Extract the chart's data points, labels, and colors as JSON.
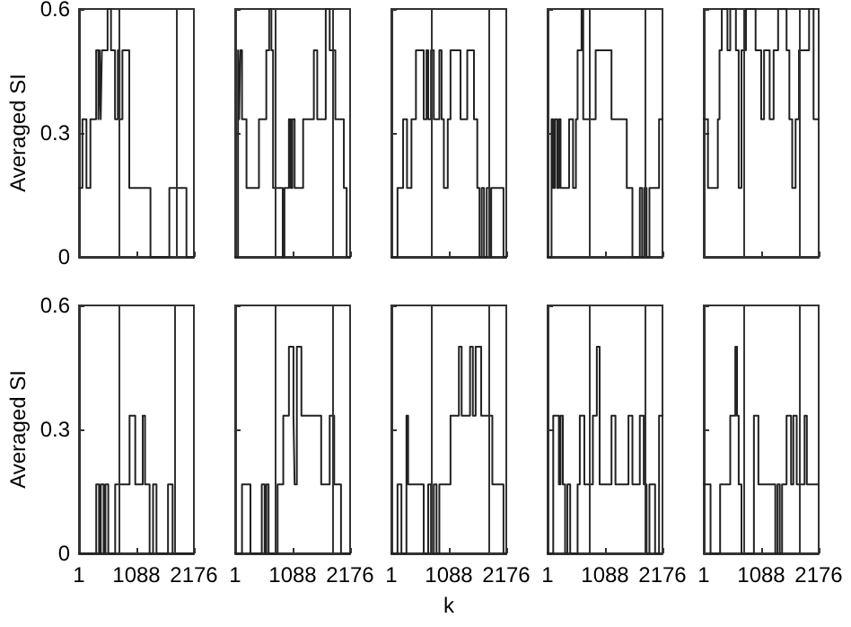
{
  "chart_data": [
    {
      "type": "step",
      "ylabel": "Averaged SI",
      "tick_labels": "y",
      "color": "#222222",
      "xlim": [
        1,
        2176
      ],
      "xticks": [
        1,
        1088,
        2176
      ],
      "ylim": [
        0,
        0.6
      ],
      "yticks": [
        0,
        0.3,
        0.6
      ],
      "ref_lines": [
        {
          "axis": "x",
          "value": 760
        },
        {
          "axis": "x",
          "value": 1830
        }
      ],
      "x": [
        1,
        66,
        142,
        217,
        326,
        369,
        391,
        412,
        434,
        542,
        607,
        683,
        737,
        769,
        823,
        953,
        1354,
        1711,
        2035,
        2176
      ],
      "values": [
        0.167,
        0.333,
        0.167,
        0.333,
        0.5,
        0.333,
        0.5,
        0.333,
        0.5,
        0.6,
        0.5,
        0.333,
        0.5,
        0.333,
        0.5,
        0.167,
        0,
        0.167,
        0,
        0
      ]
    },
    {
      "type": "step",
      "tick_labels": false,
      "color": "#222222",
      "xlim": [
        1,
        2176
      ],
      "xticks": [
        1,
        1088,
        2176
      ],
      "ylim": [
        0,
        0.6
      ],
      "yticks": [
        0,
        0.3,
        0.6
      ],
      "ref_lines": [
        {
          "axis": "x",
          "value": 770
        },
        {
          "axis": "x",
          "value": 1840
        }
      ],
      "x": [
        1,
        55,
        76,
        97,
        130,
        215,
        451,
        590,
        644,
        686,
        718,
        901,
        933,
        1018,
        1051,
        1083,
        1126,
        1287,
        1490,
        1554,
        1715,
        1790,
        1897,
        2058,
        2111,
        2176
      ],
      "values": [
        0,
        0.5,
        0.333,
        0.5,
        0.333,
        0.167,
        0.333,
        0.5,
        0.6,
        0.5,
        0.167,
        0,
        0.167,
        0.333,
        0.167,
        0.333,
        0.167,
        0.333,
        0.5,
        0.333,
        0.6,
        0.5,
        0.333,
        0.167,
        0,
        0
      ]
    },
    {
      "type": "step",
      "tick_labels": false,
      "color": "#222222",
      "xlim": [
        1,
        2176
      ],
      "xticks": [
        1,
        1088,
        2176
      ],
      "ylim": [
        0,
        0.6
      ],
      "yticks": [
        0,
        0.3,
        0.6
      ],
      "ref_lines": [
        {
          "axis": "x",
          "value": 760
        },
        {
          "axis": "x",
          "value": 1830
        }
      ],
      "x": [
        1,
        117,
        223,
        297,
        381,
        466,
        613,
        666,
        698,
        751,
        804,
        909,
        951,
        994,
        1068,
        1120,
        1310,
        1437,
        1564,
        1627,
        1669,
        1711,
        1754,
        1806,
        1859,
        1890,
        2123,
        2176
      ],
      "values": [
        0,
        0.167,
        0.333,
        0.167,
        0.333,
        0.5,
        0.333,
        0.5,
        0.333,
        0.5,
        0.333,
        0.5,
        0.333,
        0.167,
        0.333,
        0.5,
        0.333,
        0.5,
        0.333,
        0.167,
        0,
        0.167,
        0,
        0.167,
        0,
        0.167,
        0,
        0
      ]
    },
    {
      "type": "step",
      "tick_labels": false,
      "color": "#222222",
      "xlim": [
        1,
        2176
      ],
      "xticks": [
        1,
        1088,
        2176
      ],
      "ylim": [
        0,
        0.6
      ],
      "yticks": [
        0,
        0.3,
        0.6
      ],
      "ref_lines": [
        {
          "axis": "x",
          "value": 777
        },
        {
          "axis": "x",
          "value": 1845
        }
      ],
      "x": [
        1,
        76,
        108,
        140,
        183,
        215,
        247,
        408,
        483,
        537,
        569,
        644,
        676,
        911,
        1211,
        1500,
        1607,
        1747,
        1790,
        1832,
        1875,
        1929,
        2111,
        2176
      ],
      "values": [
        0,
        0.333,
        0.167,
        0.333,
        0.167,
        0.333,
        0.167,
        0.333,
        0.167,
        0.333,
        0.5,
        0.6,
        0.333,
        0.5,
        0.333,
        0.167,
        0,
        0.167,
        0,
        0.167,
        0,
        0.167,
        0.333,
        0.333
      ]
    },
    {
      "type": "step",
      "tick_labels": false,
      "color": "#222222",
      "xlim": [
        1,
        2176
      ],
      "xticks": [
        1,
        1088,
        2176
      ],
      "ylim": [
        0,
        0.6
      ],
      "yticks": [
        0,
        0.3,
        0.6
      ],
      "ref_lines": [
        {
          "axis": "x",
          "value": 758
        },
        {
          "axis": "x",
          "value": 1823
        }
      ],
      "x": [
        1,
        80,
        267,
        299,
        342,
        449,
        502,
        609,
        662,
        715,
        800,
        982,
        1088,
        1142,
        1248,
        1323,
        1408,
        1568,
        1621,
        1675,
        1739,
        1802,
        1994,
        2079,
        2176
      ],
      "values": [
        0.333,
        0.167,
        0.333,
        0.5,
        0.6,
        0.5,
        0.6,
        0.5,
        0.167,
        0.5,
        0.6,
        0.5,
        0.333,
        0.5,
        0.333,
        0.5,
        0.6,
        0.5,
        0.333,
        0.167,
        0.333,
        0.5,
        0.6,
        0.333,
        0.333
      ]
    },
    {
      "type": "step",
      "ylabel": "Averaged SI",
      "color": "#222222",
      "xlim": [
        1,
        2176
      ],
      "xticks": [
        1,
        1088,
        2176
      ],
      "ylim": [
        0,
        0.6
      ],
      "yticks": [
        0,
        0.3,
        0.6
      ],
      "ref_lines": [
        {
          "axis": "x",
          "value": 761
        },
        {
          "axis": "x",
          "value": 1827
        }
      ],
      "x": [
        1,
        327,
        381,
        414,
        468,
        501,
        555,
        686,
        958,
        1066,
        1208,
        1251,
        1338,
        1403,
        1468,
        1686,
        1773,
        2176
      ],
      "values": [
        0,
        0.167,
        0,
        0.167,
        0,
        0.167,
        0,
        0.167,
        0.333,
        0.167,
        0.333,
        0.167,
        0,
        0.167,
        0,
        0.167,
        0,
        0
      ]
    },
    {
      "type": "step",
      "tick_labels": "x",
      "color": "#222222",
      "xlim": [
        1,
        2176
      ],
      "xticks": [
        1,
        1088,
        2176
      ],
      "ylim": [
        0,
        0.6
      ],
      "yticks": [
        0,
        0.3,
        0.6
      ],
      "ref_lines": [
        {
          "axis": "x",
          "value": 770
        },
        {
          "axis": "x",
          "value": 1840
        }
      ],
      "x": [
        1,
        130,
        290,
        504,
        558,
        590,
        633,
        804,
        911,
        1018,
        1104,
        1126,
        1168,
        1254,
        1629,
        1790,
        1875,
        2004,
        2176
      ],
      "values": [
        0,
        0.167,
        0,
        0.167,
        0,
        0.167,
        0,
        0.167,
        0.333,
        0.5,
        0.333,
        0.167,
        0.5,
        0.333,
        0.167,
        0.333,
        0.167,
        0,
        0
      ]
    },
    {
      "type": "step",
      "xlabel": "k",
      "tick_labels": "x",
      "color": "#222222",
      "xlim": [
        1,
        2176
      ],
      "xticks": [
        1,
        1088,
        2176
      ],
      "ylim": [
        0,
        0.6
      ],
      "yticks": [
        0,
        0.3,
        0.6
      ],
      "ref_lines": [
        {
          "axis": "x",
          "value": 760
        },
        {
          "axis": "x",
          "value": 1830
        }
      ],
      "x": [
        1,
        117,
        191,
        286,
        318,
        613,
        698,
        751,
        804,
        856,
        909,
        1120,
        1279,
        1331,
        1490,
        1543,
        1596,
        1701,
        1912,
        2123,
        2176
      ],
      "values": [
        0,
        0.167,
        0,
        0.333,
        0.167,
        0,
        0.167,
        0,
        0.167,
        0,
        0.167,
        0.333,
        0.5,
        0.333,
        0.5,
        0.333,
        0.5,
        0.333,
        0.167,
        0,
        0
      ]
    },
    {
      "type": "step",
      "tick_labels": "x",
      "color": "#222222",
      "xlim": [
        1,
        2176
      ],
      "xticks": [
        1,
        1088,
        2176
      ],
      "ylim": [
        0,
        0.6
      ],
      "yticks": [
        0,
        0.3,
        0.6
      ],
      "ref_lines": [
        {
          "axis": "x",
          "value": 777
        },
        {
          "axis": "x",
          "value": 1845
        }
      ],
      "x": [
        1,
        108,
        215,
        247,
        290,
        333,
        376,
        429,
        569,
        611,
        697,
        858,
        933,
        986,
        1211,
        1286,
        1532,
        1607,
        1747,
        1822,
        1875,
        1929,
        2036,
        2111,
        2176
      ],
      "values": [
        0,
        0.333,
        0.167,
        0.333,
        0.167,
        0,
        0.167,
        0,
        0.167,
        0.333,
        0.167,
        0.333,
        0.5,
        0.167,
        0.333,
        0.167,
        0.333,
        0.167,
        0.333,
        0.167,
        0,
        0.167,
        0,
        0.333,
        0.333
      ]
    },
    {
      "type": "step",
      "tick_labels": "x",
      "color": "#222222",
      "xlim": [
        1,
        2176
      ],
      "xticks": [
        1,
        1088,
        2176
      ],
      "ylim": [
        0,
        0.6
      ],
      "yticks": [
        0,
        0.3,
        0.6
      ],
      "ref_lines": [
        {
          "axis": "x",
          "value": 758
        },
        {
          "axis": "x",
          "value": 1823
        }
      ],
      "x": [
        1,
        129,
        310,
        502,
        598,
        630,
        662,
        715,
        950,
        1035,
        1355,
        1397,
        1440,
        1483,
        1568,
        1653,
        1696,
        1760,
        1909,
        1952,
        2176
      ],
      "values": [
        0.167,
        0,
        0.167,
        0.333,
        0.5,
        0.333,
        0.167,
        0,
        0.333,
        0.167,
        0,
        0.167,
        0,
        0.167,
        0.333,
        0.167,
        0.333,
        0.167,
        0.333,
        0.167,
        0.167
      ]
    }
  ]
}
